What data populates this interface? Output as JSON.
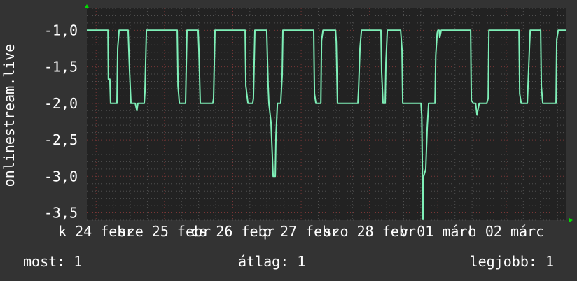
{
  "colors": {
    "background": "#333333",
    "plot_background": "#222222",
    "line": "#7ff0b8",
    "major_grid": "#7a3636",
    "minor_grid": "#505050",
    "axis_arrow": "#00dd00"
  },
  "chart_data": {
    "type": "line",
    "title": "",
    "ylabel": "onlinestream.live",
    "xlabel": "",
    "ylim": [
      -3.6,
      -0.7
    ],
    "xlim": [
      "02-24 08:45",
      "03-03 08:55"
    ],
    "grid": true,
    "yticks": [
      {
        "value": -1.0,
        "label": "-1,0"
      },
      {
        "value": -1.5,
        "label": "-1,5"
      },
      {
        "value": -2.0,
        "label": "-2,0"
      },
      {
        "value": -2.5,
        "label": "-2,5"
      },
      {
        "value": -3.0,
        "label": "-3,0"
      },
      {
        "value": -3.5,
        "label": "-3,5"
      }
    ],
    "xticks": [
      {
        "value": "02-24 12:00",
        "label": "k 24 febr"
      },
      {
        "value": "02-25 12:00",
        "label": "sze 25 febr"
      },
      {
        "value": "02-26 12:00",
        "label": "cs 26 febr"
      },
      {
        "value": "02-27 12:00",
        "label": "p 27 febr"
      },
      {
        "value": "02-28 12:00",
        "label": "szo 28 febr"
      },
      {
        "value": "03-01 12:00",
        "label": "v 01 márc"
      },
      {
        "value": "03-02 12:00",
        "label": "h 02 márc"
      }
    ],
    "series": [
      {
        "points": [
          [
            "02-24 08:45",
            -1.0
          ],
          [
            "02-24 16:10",
            -1.0
          ],
          [
            "02-24 16:20",
            -1.67
          ],
          [
            "02-24 16:50",
            -1.67
          ],
          [
            "02-24 17:05",
            -2.0
          ],
          [
            "02-24 19:20",
            -2.0
          ],
          [
            "02-24 19:35",
            -1.24
          ],
          [
            "02-24 20:05",
            -1.0
          ],
          [
            "02-24 23:15",
            -1.0
          ],
          [
            "02-24 23:45",
            -1.55
          ],
          [
            "02-25 00:15",
            -2.0
          ],
          [
            "02-25 01:45",
            -2.0
          ],
          [
            "02-25 02:20",
            -2.1
          ],
          [
            "02-25 02:40",
            -2.0
          ],
          [
            "02-25 04:55",
            -2.0
          ],
          [
            "02-25 05:10",
            -1.84
          ],
          [
            "02-25 05:40",
            -1.0
          ],
          [
            "02-25 16:30",
            -1.0
          ],
          [
            "02-25 16:45",
            -1.76
          ],
          [
            "02-25 17:15",
            -2.0
          ],
          [
            "02-25 19:25",
            -2.0
          ],
          [
            "02-25 19:55",
            -1.0
          ],
          [
            "02-25 23:50",
            -1.0
          ],
          [
            "02-26 00:05",
            -1.26
          ],
          [
            "02-26 00:35",
            -2.0
          ],
          [
            "02-26 05:00",
            -2.0
          ],
          [
            "02-26 05:15",
            -1.93
          ],
          [
            "02-26 05:45",
            -1.0
          ],
          [
            "02-26 16:20",
            -1.0
          ],
          [
            "02-26 16:35",
            -1.76
          ],
          [
            "02-26 17:20",
            -2.0
          ],
          [
            "02-26 19:00",
            -2.0
          ],
          [
            "02-26 19:15",
            -1.93
          ],
          [
            "02-26 19:45",
            -1.0
          ],
          [
            "02-26 23:55",
            -1.0
          ],
          [
            "02-27 00:25",
            -1.77
          ],
          [
            "02-27 00:40",
            -2.0
          ],
          [
            "02-27 01:25",
            -2.26
          ],
          [
            "02-27 02:10",
            -3.0
          ],
          [
            "02-27 02:55",
            -3.0
          ],
          [
            "02-27 03:10",
            -2.44
          ],
          [
            "02-27 03:40",
            -2.0
          ],
          [
            "02-27 04:50",
            -2.0
          ],
          [
            "02-27 05:20",
            -1.62
          ],
          [
            "02-27 05:35",
            -1.0
          ],
          [
            "02-27 16:25",
            -1.0
          ],
          [
            "02-27 16:40",
            -1.87
          ],
          [
            "02-27 17:10",
            -2.0
          ],
          [
            "02-27 18:55",
            -2.0
          ],
          [
            "02-27 19:10",
            -1.14
          ],
          [
            "02-27 19:40",
            -1.0
          ],
          [
            "02-28 00:05",
            -1.0
          ],
          [
            "02-28 00:20",
            -1.16
          ],
          [
            "02-28 00:45",
            -2.0
          ],
          [
            "02-28 07:55",
            -2.0
          ],
          [
            "02-28 08:10",
            -1.8
          ],
          [
            "02-28 08:40",
            -1.24
          ],
          [
            "02-28 09:10",
            -1.0
          ],
          [
            "02-28 16:00",
            -1.0
          ],
          [
            "02-28 16:15",
            -1.57
          ],
          [
            "02-28 16:45",
            -2.0
          ],
          [
            "02-28 17:30",
            -2.0
          ],
          [
            "02-28 17:45",
            -1.44
          ],
          [
            "02-28 18:15",
            -1.0
          ],
          [
            "02-28 22:55",
            -1.0
          ],
          [
            "02-28 23:25",
            -1.27
          ],
          [
            "02-28 23:40",
            -2.0
          ],
          [
            "03-01 06:05",
            -2.0
          ],
          [
            "03-01 06:20",
            -2.17
          ],
          [
            "03-01 06:45",
            -3.59
          ],
          [
            "03-01 07:00",
            -3.0
          ],
          [
            "03-01 07:45",
            -2.9
          ],
          [
            "03-01 08:15",
            -2.33
          ],
          [
            "03-01 08:45",
            -2.0
          ],
          [
            "03-01 11:00",
            -2.0
          ],
          [
            "03-01 11:15",
            -1.34
          ],
          [
            "03-01 11:45",
            -1.04
          ],
          [
            "03-01 12:00",
            -1.0
          ],
          [
            "03-01 12:25",
            -1.0
          ],
          [
            "03-01 12:40",
            -1.1
          ],
          [
            "03-01 13:10",
            -1.0
          ],
          [
            "03-01 23:30",
            -1.0
          ],
          [
            "03-01 23:45",
            -1.96
          ],
          [
            "03-02 00:30",
            -2.0
          ],
          [
            "03-02 01:15",
            -2.0
          ],
          [
            "03-02 01:45",
            -2.16
          ],
          [
            "03-02 02:30",
            -2.0
          ],
          [
            "03-02 05:10",
            -2.0
          ],
          [
            "03-02 05:40",
            -1.93
          ],
          [
            "03-02 05:55",
            -1.0
          ],
          [
            "03-02 16:30",
            -1.0
          ],
          [
            "03-02 16:45",
            -1.87
          ],
          [
            "03-02 17:15",
            -2.0
          ],
          [
            "03-02 19:25",
            -2.0
          ],
          [
            "03-02 20:10",
            -1.24
          ],
          [
            "03-02 20:25",
            -1.0
          ],
          [
            "03-03 00:05",
            -1.0
          ],
          [
            "03-03 00:20",
            -1.77
          ],
          [
            "03-03 00:50",
            -2.0
          ],
          [
            "03-03 05:30",
            -2.0
          ],
          [
            "03-03 05:45",
            -1.13
          ],
          [
            "03-03 06:15",
            -1.0
          ],
          [
            "03-03 08:55",
            -1.0
          ]
        ]
      }
    ]
  },
  "legend": {
    "current": "most: 1",
    "average": "átlag: 1",
    "max": "legjobb: 1"
  }
}
